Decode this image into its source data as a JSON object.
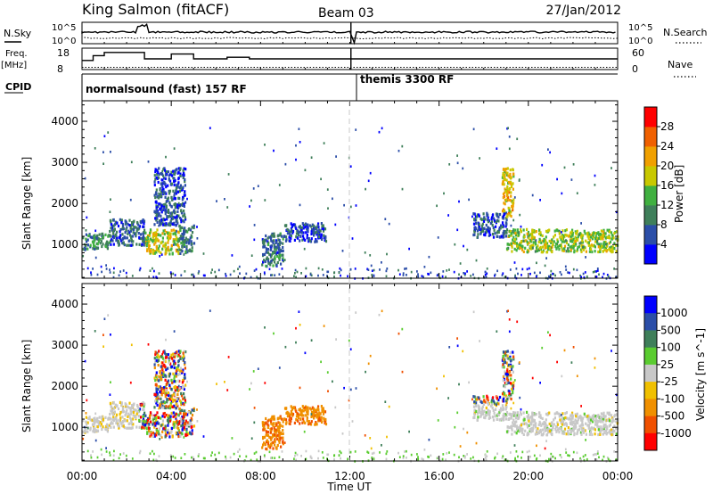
{
  "header": {
    "station": "King Salmon (fitACF)",
    "beam": "Beam 03",
    "date": "27/Jan/2012"
  },
  "top_panels": {
    "nsky_label": "N.Sky",
    "nsky_ticks": [
      "10^5",
      "10^0"
    ],
    "nsearch_label": "N.Search",
    "nsearch_ticks": [
      "10^5",
      "10^0"
    ],
    "freq_label": "Freq.",
    "freq_unit": "[MHz]",
    "freq_ticks": [
      "18",
      "8"
    ],
    "nave_label": "Nave",
    "nave_ticks": [
      "60",
      "0"
    ],
    "cpid_label": "CPID",
    "cpid_segments": [
      {
        "label": "normalsound (fast) 157 RF",
        "start_h": 0,
        "end_h": 12
      },
      {
        "label": "themis 3300 RF",
        "start_h": 12.05,
        "end_h": 24
      }
    ],
    "freq_steps_mhz": [
      [
        0,
        12
      ],
      [
        0.5,
        12
      ],
      [
        0.5,
        15
      ],
      [
        1.0,
        15
      ],
      [
        1.0,
        17
      ],
      [
        2.8,
        17
      ],
      [
        2.8,
        13
      ],
      [
        4.0,
        13
      ],
      [
        4.0,
        16
      ],
      [
        5.0,
        16
      ],
      [
        5.0,
        13
      ],
      [
        6.5,
        13
      ],
      [
        6.5,
        14
      ],
      [
        7.5,
        14
      ],
      [
        7.5,
        13
      ],
      [
        12.0,
        13
      ],
      [
        12.05,
        13
      ],
      [
        24,
        13
      ]
    ]
  },
  "chart_data": [
    {
      "type": "heatmap",
      "name": "power",
      "ylabel": "Slant Range [km]",
      "ylim": [
        180,
        4500
      ],
      "yticks": [
        1000,
        2000,
        3000,
        4000
      ],
      "colorbar": {
        "title": "Power [dB]",
        "range": [
          0,
          32
        ],
        "ticks": [
          "4",
          "8",
          "12",
          "16",
          "20",
          "24",
          "28"
        ]
      },
      "echo_regions": [
        {
          "t_start": 0.0,
          "t_end": 1.2,
          "r_min": 900,
          "r_max": 1300,
          "level": 10
        },
        {
          "t_start": 1.2,
          "t_end": 2.8,
          "r_min": 1000,
          "r_max": 1650,
          "level": 7
        },
        {
          "t_start": 2.8,
          "t_end": 4.3,
          "r_min": 800,
          "r_max": 1400,
          "level": 18
        },
        {
          "t_start": 3.2,
          "t_end": 4.6,
          "r_min": 1500,
          "r_max": 2900,
          "level": 6
        },
        {
          "t_start": 4.3,
          "t_end": 5.0,
          "r_min": 800,
          "r_max": 1500,
          "level": 9
        },
        {
          "t_start": 8.0,
          "t_end": 9.0,
          "r_min": 500,
          "r_max": 1300,
          "level": 8
        },
        {
          "t_start": 9.0,
          "t_end": 10.9,
          "r_min": 1100,
          "r_max": 1550,
          "level": 5
        },
        {
          "t_start": 17.5,
          "t_end": 19.0,
          "r_min": 1200,
          "r_max": 1800,
          "level": 6
        },
        {
          "t_start": 19.0,
          "t_end": 24.0,
          "r_min": 850,
          "r_max": 1400,
          "level": 16
        },
        {
          "t_start": 18.8,
          "t_end": 19.3,
          "r_min": 1700,
          "r_max": 2900,
          "level": 20
        }
      ]
    },
    {
      "type": "heatmap",
      "name": "velocity",
      "xlabel": "Time UT",
      "ylabel": "Slant Range [km]",
      "ylim": [
        180,
        4500
      ],
      "yticks": [
        1000,
        2000,
        3000,
        4000
      ],
      "xticks": [
        "00:00",
        "04:00",
        "08:00",
        "12:00",
        "16:00",
        "20:00",
        "00:00"
      ],
      "colorbar": {
        "title": "Velocity [m s^-1]",
        "ticks": [
          "1000",
          "500",
          "100",
          "25",
          "-25",
          "-100",
          "-500",
          "-1000"
        ]
      }
    }
  ],
  "colors": {
    "power_scale": [
      "#0000ff",
      "#2b4ea8",
      "#3f7f5a",
      "#40b040",
      "#c8c800",
      "#f0a000",
      "#f06000",
      "#ff0000"
    ],
    "velocity_scale": [
      "#0000ff",
      "#2b4ea8",
      "#3f7f5a",
      "#5acc30",
      "#c8c8c8",
      "#f0c000",
      "#f09000",
      "#f05000",
      "#ff0000"
    ]
  }
}
